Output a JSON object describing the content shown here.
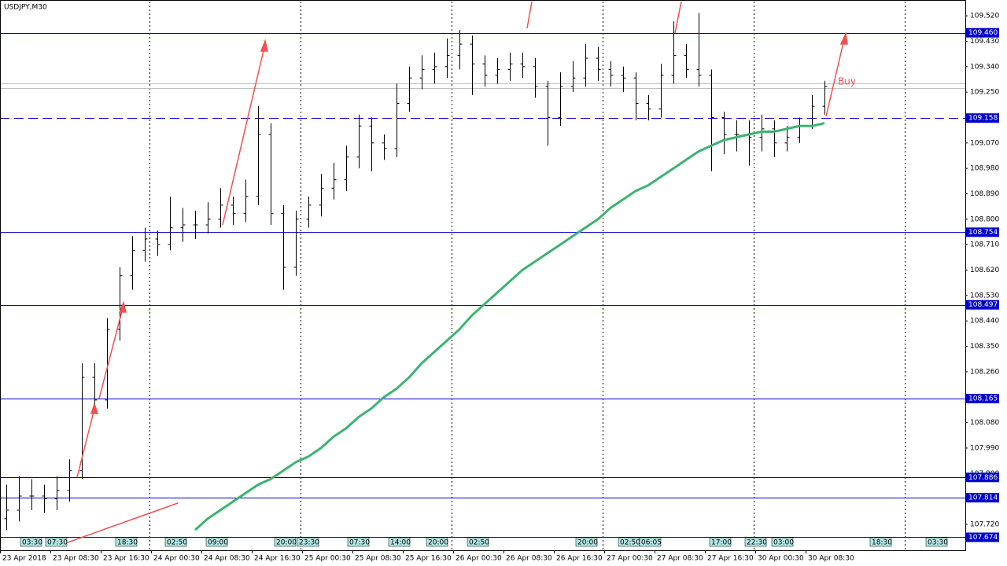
{
  "chart_data": {
    "type": "ohlc",
    "title": "USDJPY,M30",
    "open": [
      107.74,
      107.77,
      107.82,
      107.82,
      107.81,
      107.84,
      107.91,
      108.24,
      108.16,
      108.41,
      108.6,
      108.69,
      108.73,
      108.71,
      108.77,
      108.78,
      108.78,
      108.8,
      108.85,
      108.82,
      108.88,
      109.1,
      108.82,
      108.63,
      108.8,
      108.85,
      108.91,
      108.94,
      109.02,
      109.13,
      109.07,
      109.05,
      109.21,
      109.3,
      109.33,
      109.34,
      109.38,
      109.42,
      109.35,
      109.31,
      109.33,
      109.35,
      109.34,
      109.27,
      109.16,
      109.27,
      109.3,
      109.37,
      109.33,
      109.31,
      109.3,
      109.21,
      109.19,
      109.31,
      109.38,
      109.33,
      109.31,
      109.16,
      109.1,
      109.1,
      109.09,
      109.12,
      109.07,
      109.09,
      109.13,
      109.2
    ],
    "high": [
      107.86,
      107.89,
      107.88,
      107.86,
      107.89,
      107.95,
      108.29,
      108.29,
      108.45,
      108.63,
      108.74,
      108.77,
      108.76,
      108.88,
      108.84,
      108.83,
      108.86,
      108.91,
      108.88,
      108.94,
      109.2,
      109.14,
      108.85,
      108.83,
      108.88,
      108.96,
      109.0,
      109.06,
      109.17,
      109.16,
      109.1,
      109.28,
      109.34,
      109.38,
      109.39,
      109.44,
      109.47,
      109.45,
      109.38,
      109.37,
      109.39,
      109.39,
      109.37,
      109.29,
      109.32,
      109.36,
      109.42,
      109.41,
      109.36,
      109.34,
      109.32,
      109.24,
      109.35,
      109.5,
      109.42,
      109.53,
      109.33,
      109.18,
      109.15,
      109.15,
      109.17,
      109.15,
      109.13,
      109.16,
      109.24,
      109.29
    ],
    "low": [
      107.7,
      107.73,
      107.77,
      107.76,
      107.77,
      107.8,
      107.88,
      108.12,
      108.13,
      108.37,
      108.55,
      108.65,
      108.67,
      108.69,
      108.72,
      108.73,
      108.75,
      108.77,
      108.78,
      108.79,
      108.85,
      108.78,
      108.55,
      108.6,
      108.77,
      108.81,
      108.87,
      108.9,
      108.98,
      108.97,
      109.01,
      109.02,
      109.18,
      109.26,
      109.28,
      109.3,
      109.33,
      109.24,
      109.27,
      109.28,
      109.29,
      109.3,
      109.23,
      109.06,
      109.13,
      109.25,
      109.27,
      109.29,
      109.27,
      109.25,
      109.15,
      109.15,
      109.16,
      109.28,
      109.3,
      109.27,
      108.97,
      109.03,
      109.04,
      108.99,
      109.04,
      109.02,
      109.04,
      109.07,
      109.12,
      109.17
    ],
    "close": [
      107.77,
      107.82,
      107.82,
      107.81,
      107.84,
      107.91,
      108.24,
      108.16,
      108.41,
      108.6,
      108.69,
      108.73,
      108.71,
      108.77,
      108.78,
      108.78,
      108.8,
      108.85,
      108.82,
      108.88,
      109.1,
      108.82,
      108.63,
      108.8,
      108.85,
      108.91,
      108.94,
      109.02,
      109.13,
      109.07,
      109.05,
      109.21,
      109.3,
      109.33,
      109.34,
      109.38,
      109.42,
      109.35,
      109.31,
      109.33,
      109.35,
      109.34,
      109.27,
      109.16,
      109.27,
      109.3,
      109.37,
      109.33,
      109.31,
      109.3,
      109.21,
      109.19,
      109.31,
      109.38,
      109.33,
      109.31,
      109.16,
      109.1,
      109.1,
      109.09,
      109.12,
      109.07,
      109.09,
      109.13,
      109.2,
      109.27
    ],
    "ma": {
      "color": "#3cb371",
      "values": [
        null,
        null,
        null,
        null,
        null,
        null,
        null,
        null,
        null,
        null,
        null,
        null,
        null,
        null,
        null,
        107.7,
        107.74,
        107.77,
        107.8,
        107.83,
        107.86,
        107.88,
        107.91,
        107.94,
        107.96,
        107.99,
        108.03,
        108.06,
        108.1,
        108.13,
        108.17,
        108.2,
        108.24,
        108.29,
        108.33,
        108.37,
        108.41,
        108.46,
        108.5,
        108.54,
        108.58,
        108.62,
        108.65,
        108.68,
        108.71,
        108.74,
        108.77,
        108.8,
        108.84,
        108.87,
        108.9,
        108.92,
        108.95,
        108.98,
        109.01,
        109.04,
        109.06,
        109.08,
        109.09,
        109.1,
        109.11,
        109.11,
        109.12,
        109.13,
        109.13,
        109.14
      ]
    },
    "bar_color": "#000000",
    "level_color": "#0000cd",
    "levels": [
      {
        "value": 109.46,
        "label": "109.460"
      },
      {
        "value": 108.754,
        "label": "108.754"
      },
      {
        "value": 108.497,
        "label": "108.497"
      },
      {
        "value": 108.165,
        "label": "108.165"
      },
      {
        "value": 107.886,
        "label": "107.886"
      },
      {
        "value": 107.814,
        "label": "107.814"
      },
      {
        "value": 107.674,
        "label": "107.674"
      }
    ],
    "dashed_level": {
      "value": 109.158,
      "label": "109.158"
    },
    "bid_ask": [
      109.28,
      109.265
    ],
    "ylim": [
      107.628,
      109.576
    ],
    "yticks": [
      {
        "value": 109.52,
        "label": "109.520"
      },
      {
        "value": 109.43,
        "label": "109.430"
      },
      {
        "value": 109.34,
        "label": "109.340"
      },
      {
        "value": 109.25,
        "label": "109.250"
      },
      {
        "value": 109.16,
        "label": "109.160"
      },
      {
        "value": 109.07,
        "label": "109.070"
      },
      {
        "value": 108.98,
        "label": "108.980"
      },
      {
        "value": 108.89,
        "label": "108.890"
      },
      {
        "value": 108.8,
        "label": "108.800"
      },
      {
        "value": 108.71,
        "label": "108.710"
      },
      {
        "value": 108.62,
        "label": "108.620"
      },
      {
        "value": 108.53,
        "label": "108.530"
      },
      {
        "value": 108.44,
        "label": "108.440"
      },
      {
        "value": 108.35,
        "label": "108.350"
      },
      {
        "value": 108.26,
        "label": "108.260"
      },
      {
        "value": 108.17,
        "label": "108.170"
      },
      {
        "value": 108.08,
        "label": "108.080"
      },
      {
        "value": 107.99,
        "label": "107.990"
      },
      {
        "value": 107.9,
        "label": "107.900"
      },
      {
        "value": 107.81,
        "label": "107.810"
      },
      {
        "value": 107.72,
        "label": "107.720"
      }
    ],
    "xtick_labels": [
      "23 Apr 2018",
      "23 Apr 08:30",
      "23 Apr 16:30",
      "24 Apr 00:30",
      "24 Apr 08:30",
      "24 Apr 16:30",
      "25 Apr 00:30",
      "25 Apr 08:30",
      "25 Apr 16:30",
      "26 Apr 00:30",
      "26 Apr 08:30",
      "26 Apr 16:30",
      "27 Apr 00:30",
      "27 Apr 08:30",
      "27 Apr 16:30",
      "30 Apr 00:30",
      "30 Apr 08:30"
    ],
    "time_markers": [
      "03:30",
      "07:30",
      "18:30",
      "02:50",
      "09:00",
      "20:00",
      "23:30",
      "07:30",
      "14:00",
      "20:00",
      "02:50",
      "20:00",
      "02:50",
      "06:05",
      "17:00",
      "22:30",
      "03:00",
      "18:30",
      "03:30"
    ],
    "annotation": "Buy"
  }
}
